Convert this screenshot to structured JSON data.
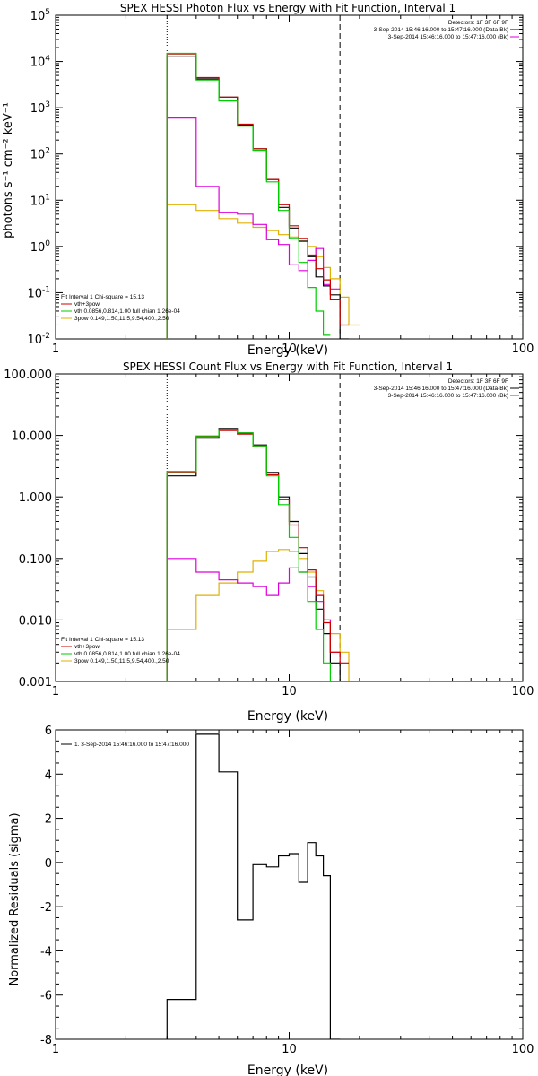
{
  "colors": {
    "background": "#ffffff",
    "axis": "#000000",
    "data": "#000000",
    "vth_plus_3pow": "#cc0000",
    "vth": "#00cc00",
    "3pow": "#e0b000",
    "bk": "#dd00dd"
  },
  "chart_data": [
    {
      "id": "photon",
      "type": "line",
      "title": "SPEX HESSI Photon Flux vs Energy with Fit Function, Interval 1",
      "xlabel": "Energy (keV)",
      "ylabel": "photons s⁻¹ cm⁻² keV⁻¹",
      "xscale": "log",
      "yscale": "log",
      "xlim": [
        1,
        100
      ],
      "ylim": [
        0.01,
        100000
      ],
      "xticks": [
        1,
        10,
        100
      ],
      "xtick_labels": [
        "1",
        "10",
        "100"
      ],
      "yticks": [
        0.01,
        0.1,
        1,
        10,
        100,
        1000,
        10000,
        100000
      ],
      "ytick_labels": [
        {
          "base": "10",
          "exp": "-2"
        },
        {
          "base": "10",
          "exp": "-1"
        },
        {
          "base": "10",
          "exp": "0"
        },
        {
          "base": "10",
          "exp": "1"
        },
        {
          "base": "10",
          "exp": "2"
        },
        {
          "base": "10",
          "exp": "3"
        },
        {
          "base": "10",
          "exp": "4"
        },
        {
          "base": "10",
          "exp": "5"
        }
      ],
      "vlines": [
        {
          "x": 3.0,
          "style": "dotted"
        },
        {
          "x": 16.5,
          "style": "dashed"
        }
      ],
      "edges": [
        3.0,
        4.0,
        5.0,
        6.0,
        7.0,
        8.0,
        9.0,
        10.0,
        11.0,
        12.0,
        13.0,
        14.0,
        15.0,
        16.5,
        18.0,
        20.0
      ],
      "series": [
        {
          "name": "3-Sep-2014 15:46:16.000 to 15:47:16.000 (Data-Bk)",
          "color_key": "data",
          "values": [
            13000,
            4200,
            1700,
            420,
            130,
            28,
            7.0,
            2.5,
            1.3,
            0.6,
            0.22,
            0.14,
            0.09,
            0.01,
            null
          ]
        },
        {
          "name": "3-Sep-2014 15:46:16.000 to 15:47:16.000 (Bk)",
          "color_key": "bk",
          "values": [
            600,
            20,
            5.5,
            5.0,
            3.0,
            1.4,
            1.1,
            0.4,
            0.3,
            0.5,
            0.9,
            0.15,
            0.12,
            null,
            null
          ]
        },
        {
          "name": "vth+3pow",
          "color_key": "vth_plus_3pow",
          "values": [
            14500,
            4500,
            1700,
            440,
            130,
            28,
            8.0,
            2.8,
            1.5,
            0.65,
            0.33,
            0.19,
            0.07,
            0.02,
            null
          ]
        },
        {
          "name": "vth 0.0856,0.814,1.00  full chian 1.26e-04",
          "color_key": "vth",
          "values": [
            15000,
            4000,
            1400,
            400,
            120,
            25,
            6.0,
            1.5,
            0.45,
            0.13,
            0.04,
            0.012,
            null,
            null,
            null
          ]
        },
        {
          "name": "3pow 0.149,1.50,11.5,9.54,400.,2.50",
          "color_key": "3pow",
          "values": [
            8.0,
            6.0,
            4.0,
            3.2,
            2.6,
            2.2,
            1.8,
            1.6,
            1.3,
            1.0,
            0.6,
            0.35,
            0.2,
            0.08,
            0.02
          ]
        }
      ],
      "legend_left": {
        "header": "Fit Interval 1    Chi-square = 15.13",
        "entries": [
          {
            "label": "vth+3pow",
            "color_key": "vth_plus_3pow"
          },
          {
            "label": "vth 0.0856,0.814,1.00  full chian 1.26e-04",
            "color_key": "vth"
          },
          {
            "label": "3pow 0.149,1.50,11.5,9.54,400.,2.50",
            "color_key": "3pow"
          }
        ]
      },
      "legend_right": {
        "header": "Detectors: 1F 3F 6F 9F",
        "entries": [
          {
            "label": "3-Sep-2014 15:46:16.000 to 15:47:16.000 (Data-Bk)",
            "color_key": "data"
          },
          {
            "label": "3-Sep-2014 15:46:16.000 to 15:47:16.000 (Bk)",
            "color_key": "bk"
          }
        ]
      }
    },
    {
      "id": "count",
      "type": "line",
      "title": "SPEX HESSI Count Flux vs Energy with Fit Function, Interval 1",
      "xlabel": "Energy (keV)",
      "ylabel": "",
      "xscale": "log",
      "yscale": "log",
      "xlim": [
        1,
        100
      ],
      "ylim": [
        0.001,
        100
      ],
      "xticks": [
        1,
        10,
        100
      ],
      "xtick_labels": [
        "1",
        "10",
        "100"
      ],
      "yticks": [
        0.001,
        0.01,
        0.1,
        1,
        10,
        100
      ],
      "ytick_labels": [
        "0.001",
        "0.010",
        "0.100",
        "1.000",
        "10.000",
        "100.000"
      ],
      "vlines": [
        {
          "x": 3.0,
          "style": "dotted"
        },
        {
          "x": 16.5,
          "style": "dashed"
        }
      ],
      "edges": [
        3.0,
        4.0,
        5.0,
        6.0,
        7.0,
        8.0,
        9.0,
        10.0,
        11.0,
        12.0,
        13.0,
        14.0,
        15.0,
        16.5,
        18.0,
        20.0
      ],
      "series": [
        {
          "name": "3-Sep-2014 15:46:16.000 to 15:47:16.000 (Data-Bk)",
          "color_key": "data",
          "values": [
            2.2,
            9.0,
            13.0,
            11.0,
            7.0,
            2.5,
            1.0,
            0.4,
            0.12,
            0.05,
            0.015,
            0.006,
            0.002,
            0.001,
            null
          ]
        },
        {
          "name": "3-Sep-2014 15:46:16.000 to 15:47:16.000 (Bk)",
          "color_key": "bk",
          "values": [
            0.1,
            0.06,
            0.045,
            0.04,
            0.035,
            0.025,
            0.04,
            0.07,
            0.06,
            0.035,
            0.02,
            0.01,
            0.003,
            null,
            null
          ]
        },
        {
          "name": "vth+3pow",
          "color_key": "vth_plus_3pow",
          "values": [
            2.5,
            9.5,
            12.0,
            10.5,
            6.5,
            2.3,
            0.9,
            0.35,
            0.15,
            0.065,
            0.025,
            0.009,
            0.003,
            0.002,
            null
          ]
        },
        {
          "name": "vth 0.0856,0.814,1.00  full chian 1.26e-04",
          "color_key": "vth",
          "values": [
            2.6,
            9.8,
            12.5,
            11.0,
            6.8,
            2.2,
            0.75,
            0.22,
            0.06,
            0.02,
            0.007,
            0.002,
            0.001,
            null,
            null
          ]
        },
        {
          "name": "3pow 0.149,1.50,11.5,9.54,400.,2.50",
          "color_key": "3pow",
          "values": [
            0.007,
            0.025,
            0.04,
            0.06,
            0.09,
            0.13,
            0.14,
            0.13,
            0.1,
            0.06,
            0.03,
            0.01,
            0.006,
            0.003,
            0.001
          ]
        }
      ],
      "legend_left": {
        "header": "Fit Interval 1    Chi-square = 15.13",
        "entries": [
          {
            "label": "vth+3pow",
            "color_key": "vth_plus_3pow"
          },
          {
            "label": "vth 0.0856,0.814,1.00  full chian 1.26e-04",
            "color_key": "vth"
          },
          {
            "label": "3pow 0.149,1.50,11.5,9.54,400.,2.50",
            "color_key": "3pow"
          }
        ]
      },
      "legend_right": {
        "header": "Detectors: 1F 3F 6F 9F",
        "entries": [
          {
            "label": "3-Sep-2014 15:46:16.000 to 15:47:16.000 (Data-Bk)",
            "color_key": "data"
          },
          {
            "label": "3-Sep-2014 15:46:16.000 to 15:47:16.000 (Bk)",
            "color_key": "bk"
          }
        ]
      }
    },
    {
      "id": "resid",
      "type": "line",
      "title": "",
      "xlabel": "Energy (keV)",
      "ylabel": "Normalized Residuals (sigma)",
      "xscale": "log",
      "yscale": "linear",
      "xlim": [
        1,
        100
      ],
      "ylim": [
        -8,
        6
      ],
      "xticks": [
        1,
        10,
        100
      ],
      "xtick_labels": [
        "1",
        "10",
        "100"
      ],
      "yticks": [
        -8,
        -6,
        -4,
        -2,
        0,
        2,
        4,
        6
      ],
      "ytick_labels": [
        "-8",
        "-6",
        "-4",
        "-2",
        "0",
        "2",
        "4",
        "6"
      ],
      "edges": [
        3.0,
        4.0,
        5.0,
        6.0,
        7.0,
        8.0,
        9.0,
        10.0,
        11.0,
        12.0,
        13.0,
        14.0,
        15.0,
        16.5
      ],
      "series": [
        {
          "name": "1.  3-Sep-2014 15:46:16.000 to 15:47:16.000",
          "color_key": "data",
          "values": [
            -6.2,
            5.8,
            4.1,
            -2.6,
            -0.1,
            -0.2,
            0.3,
            0.4,
            -0.9,
            0.9,
            0.3,
            -0.6,
            -8.0
          ]
        }
      ],
      "legend_left": {
        "header": "",
        "entries": [
          {
            "label": "1.  3-Sep-2014 15:46:16.000 to 15:47:16.000",
            "color_key": "data"
          }
        ]
      }
    }
  ]
}
